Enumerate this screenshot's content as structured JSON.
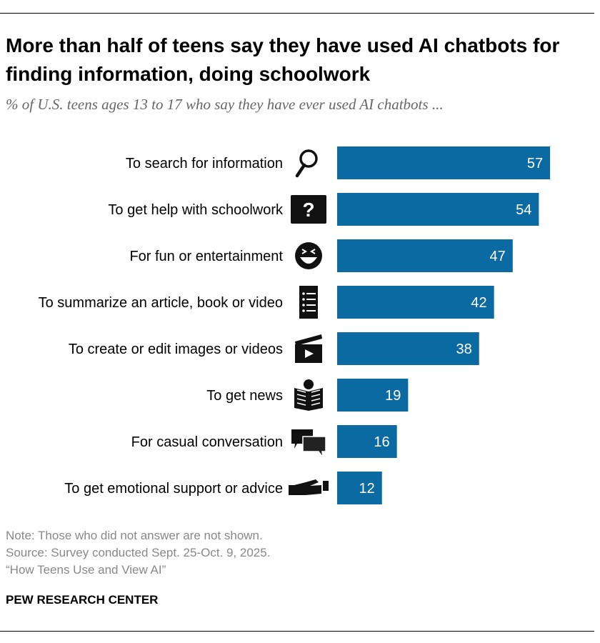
{
  "title": "More than half of teens say they have used AI chatbots for finding information, doing schoolwork",
  "subtitle": "% of U.S. teens ages 13 to 17 who say they have ever used AI chatbots ...",
  "chart_data": {
    "type": "bar",
    "orientation": "horizontal",
    "categories": [
      "To search for information",
      "To get help with schoolwork",
      "For fun or entertainment",
      "To summarize an article, book or video",
      "To create or edit images or videos",
      "To get news",
      "For casual conversation",
      "To get emotional support or advice"
    ],
    "values": [
      57,
      54,
      47,
      42,
      38,
      19,
      16,
      12
    ],
    "icons": [
      "magnifier-icon",
      "question-box-icon",
      "laughing-face-icon",
      "list-icon",
      "clapperboard-icon",
      "newspaper-reader-icon",
      "speech-bubbles-icon",
      "helping-hand-icon"
    ],
    "bar_color": "#0B6AA1",
    "xlim": [
      0,
      100
    ],
    "grid": false
  },
  "notes": {
    "note": "Note: Those who did not answer are not shown.",
    "source": "Source: Survey conducted Sept. 25-Oct. 9, 2025.",
    "report": "“How Teens Use and View AI”"
  },
  "brand": "PEW RESEARCH CENTER"
}
